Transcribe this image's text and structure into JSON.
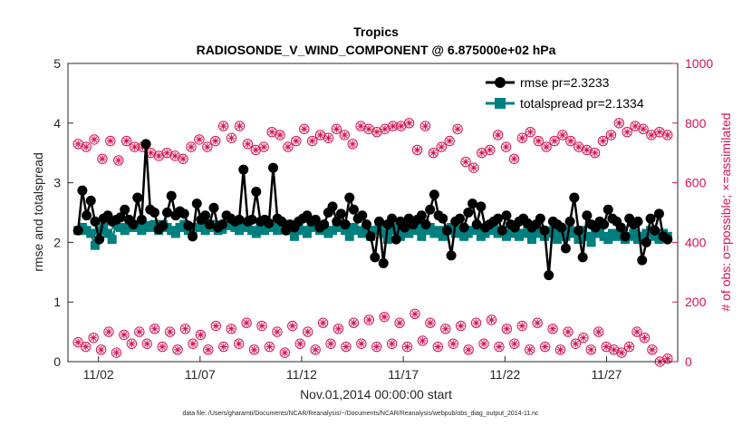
{
  "chart_data": {
    "type": "line",
    "title": "Tropics",
    "subtitle": "RADIOSONDE_V_WIND_COMPONENT @ 6.875000e+02 hPa",
    "xlabel": "Nov.01,2014 00:00:00 start",
    "ylabel_left": "rmse and totalspread",
    "ylabel_right": "# of obs: o=possible; ×=assimilated",
    "xlim": [
      0.5,
      30.5
    ],
    "ylim_left": [
      0,
      5
    ],
    "ylim_right": [
      0,
      1000
    ],
    "x_tick_labels": [
      "11/02",
      "11/07",
      "11/12",
      "11/17",
      "11/22",
      "11/27"
    ],
    "x_tick_positions": [
      2,
      7,
      12,
      17,
      22,
      27
    ],
    "y_ticks_left": [
      "0",
      "1",
      "2",
      "3",
      "4",
      "5"
    ],
    "y_ticks_right": [
      "0",
      "200",
      "400",
      "600",
      "800",
      "1000"
    ],
    "legend": [
      "rmse pr=2.3233",
      "totalspread pr=2.1334"
    ],
    "colors": {
      "rmse": "#000000",
      "spread": "#007f7f",
      "obs": "#d6124f",
      "axis": "#262626"
    },
    "series": [
      {
        "name": "rmse",
        "axis": "left",
        "values": [
          2.2,
          2.87,
          2.45,
          2.7,
          2.35,
          2.05,
          2.4,
          2.45,
          2.35,
          2.38,
          2.42,
          2.55,
          2.38,
          2.3,
          2.75,
          2.38,
          3.65,
          2.55,
          2.5,
          2.22,
          2.28,
          2.5,
          2.78,
          2.45,
          2.52,
          2.48,
          2.28,
          2.1,
          2.65,
          2.38,
          2.45,
          2.3,
          2.58,
          2.25,
          2.3,
          2.45,
          2.4,
          2.35,
          2.38,
          3.22,
          2.35,
          2.38,
          2.85,
          2.35,
          2.38,
          2.32,
          3.25,
          2.4,
          2.35,
          2.2,
          2.3,
          2.25,
          2.35,
          2.4,
          2.45,
          2.35,
          2.38,
          2.25,
          2.3,
          2.5,
          2.6,
          2.35,
          2.48,
          2.3,
          2.75,
          2.55,
          2.4,
          2.45,
          2.3,
          2.1,
          1.75,
          2.35,
          1.65,
          2.3,
          2.4,
          2.05,
          2.35,
          2.25,
          2.4,
          2.3,
          2.38,
          2.45,
          2.3,
          2.55,
          2.8,
          2.45,
          2.4,
          2.2,
          1.78,
          2.35,
          2.4,
          2.25,
          2.5,
          2.65,
          2.3,
          2.6,
          2.25,
          2.3,
          2.35,
          2.4,
          2.2,
          2.45,
          2.3,
          2.25,
          2.35,
          2.4,
          2.32,
          2.25,
          2.3,
          2.4,
          2.2,
          1.45,
          2.35,
          2.3,
          2.25,
          1.9,
          2.35,
          2.75,
          2.2,
          1.75,
          2.45,
          2.3,
          2.25,
          2.35,
          2.3,
          2.55,
          2.4,
          2.35,
          2.25,
          2.1,
          2.4,
          2.3,
          2.35,
          1.7,
          2.0,
          2.4,
          2.2,
          2.48,
          2.1,
          2.05
        ]
      },
      {
        "name": "totalspread",
        "axis": "left",
        "values": [
          2.2,
          2.25,
          2.2,
          2.15,
          1.95,
          2.2,
          2.25,
          2.15,
          2.05,
          2.3,
          2.25,
          2.2,
          2.25,
          2.3,
          2.25,
          2.2,
          2.28,
          2.25,
          2.3,
          2.2,
          2.3,
          2.25,
          2.2,
          2.15,
          2.25,
          2.3,
          2.2,
          2.15,
          2.25,
          2.3,
          2.2,
          2.25,
          2.3,
          2.2,
          2.22,
          2.28,
          2.3,
          2.25,
          2.2,
          2.3,
          2.25,
          2.2,
          2.15,
          2.25,
          2.2,
          2.3,
          2.25,
          2.2,
          2.28,
          2.3,
          2.2,
          2.1,
          2.25,
          2.2,
          2.15,
          2.25,
          2.3,
          2.2,
          2.25,
          2.15,
          2.2,
          2.25,
          2.3,
          2.2,
          2.1,
          2.25,
          2.2,
          2.15,
          2.25,
          2.1,
          2.2,
          2.25,
          2.15,
          2.05,
          2.2,
          2.25,
          2.1,
          2.2,
          2.15,
          2.2,
          2.25,
          2.1,
          2.2,
          2.25,
          2.15,
          2.2,
          2.1,
          2.2,
          2.25,
          2.15,
          2.2,
          2.1,
          2.15,
          2.2,
          2.25,
          2.1,
          2.15,
          2.2,
          2.25,
          2.15,
          2.2,
          2.1,
          2.15,
          2.2,
          2.1,
          2.15,
          2.2,
          2.05,
          2.15,
          2.2,
          2.1,
          2.15,
          2.2,
          2.05,
          2.15,
          2.1,
          2.2,
          2.15,
          2.05,
          2.2,
          2.1,
          2.0,
          2.15,
          2.2,
          2.1,
          2.05,
          2.15,
          2.1,
          2.2,
          2.05,
          2.1,
          2.15,
          2.05,
          2.1,
          2.15,
          2.2,
          2.1,
          2.05,
          2.15,
          2.1
        ]
      },
      {
        "name": "obs_upper",
        "axis": "right",
        "values": [
          730,
          720,
          745,
          680,
          740,
          675,
          740,
          720,
          720,
          700,
          690,
          700,
          690,
          680,
          720,
          745,
          720,
          740,
          790,
          750,
          790,
          730,
          710,
          720,
          770,
          760,
          720,
          740,
          780,
          740,
          760,
          750,
          780,
          760,
          730,
          790,
          780,
          770,
          780,
          790,
          790,
          800,
          710,
          790,
          700,
          720,
          740,
          780,
          670,
          650,
          700,
          710,
          760,
          720,
          680,
          750,
          770,
          740,
          720,
          740,
          760,
          740,
          720,
          710,
          700,
          740,
          760,
          800,
          770,
          790,
          780,
          760,
          770,
          760
        ]
      },
      {
        "name": "obs_lower",
        "axis": "right",
        "values": [
          65,
          50,
          80,
          40,
          100,
          30,
          90,
          60,
          100,
          60,
          110,
          50,
          100,
          40,
          110,
          60,
          90,
          40,
          120,
          50,
          110,
          60,
          130,
          40,
          120,
          50,
          100,
          30,
          120,
          60,
          100,
          40,
          130,
          60,
          110,
          50,
          130,
          60,
          140,
          50,
          150,
          60,
          130,
          50,
          160,
          70,
          130,
          50,
          110,
          60,
          120,
          40,
          130,
          60,
          140,
          50,
          110,
          60,
          120,
          40,
          130,
          50,
          110,
          40,
          100,
          60,
          80,
          40,
          100,
          50,
          40,
          30,
          50,
          100,
          80,
          40,
          0,
          10
        ]
      }
    ]
  },
  "footer_text": "data file: /Users/gharamti/Documents/NCAR/Reanalysis/~/Documents/NCAR/Reanalysis/webpub/obs_diag_output_2014-11.nc"
}
